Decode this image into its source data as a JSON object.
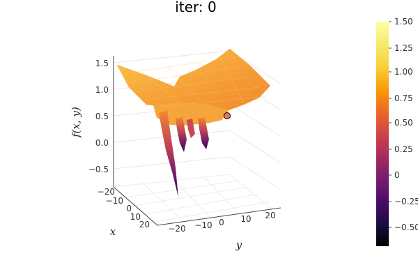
{
  "title": "iter: 0",
  "chart_data": {
    "type": "surface",
    "title": "iter: 0",
    "xlabel": "x",
    "ylabel": "y",
    "zlabel": "f(x, y)",
    "x_ticks": [
      "−20",
      "−10",
      "0",
      "10",
      "20"
    ],
    "y_ticks": [
      "−20",
      "−10",
      "0",
      "10",
      "20"
    ],
    "z_ticks": [
      "−0.5",
      "0.0",
      "0.5",
      "1.0",
      "1.5"
    ],
    "xlim": [
      -25,
      25
    ],
    "ylim": [
      -25,
      25
    ],
    "zlim": [
      -0.75,
      1.6
    ],
    "colormap": "inferno",
    "colorbar": {
      "range": [
        -0.6,
        1.5
      ],
      "ticks": [
        "−0.50",
        "−0.25",
        "0",
        "0.25",
        "0.50",
        "0.75",
        "1.00",
        "1.25",
        "1.50"
      ]
    },
    "marker": {
      "x": 0.0,
      "y": 20.0,
      "z": 0.5,
      "color": "#e07a5f"
    },
    "grid": true
  }
}
